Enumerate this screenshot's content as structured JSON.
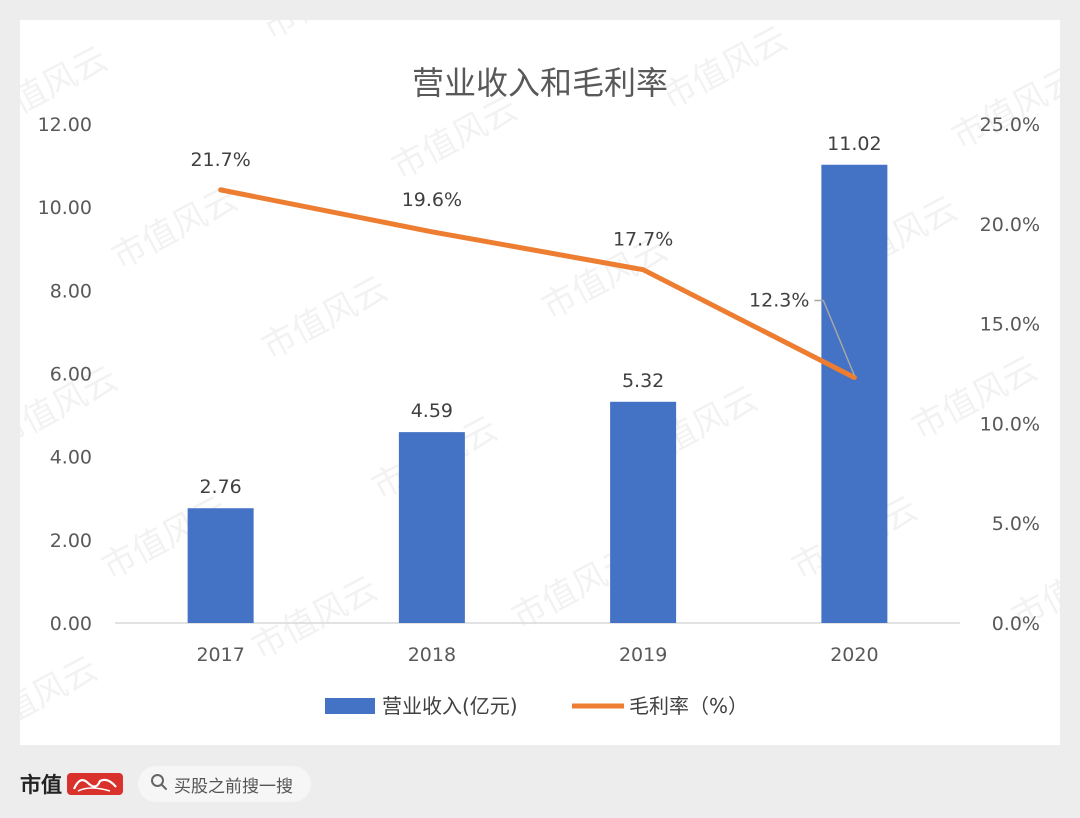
{
  "chart_data": {
    "type": "bar+line",
    "title": "营业收入和毛利率",
    "categories": [
      "2017",
      "2018",
      "2019",
      "2020"
    ],
    "series": [
      {
        "name": "营业收入(亿元)",
        "type": "bar",
        "axis": "left",
        "color": "#4472c4",
        "values": [
          2.76,
          4.59,
          5.32,
          11.02
        ],
        "labels": [
          "2.76",
          "4.59",
          "5.32",
          "11.02"
        ]
      },
      {
        "name": "毛利率（%）",
        "type": "line",
        "axis": "right",
        "color": "#ed7d31",
        "values": [
          21.7,
          19.6,
          17.7,
          12.3
        ],
        "labels": [
          "21.7%",
          "19.6%",
          "17.7%",
          "12.3%"
        ]
      }
    ],
    "y_left": {
      "ylim": [
        0,
        12
      ],
      "ticks": [
        "0.00",
        "2.00",
        "4.00",
        "6.00",
        "8.00",
        "10.00",
        "12.00"
      ]
    },
    "y_right": {
      "ylim": [
        0,
        25
      ],
      "ticks": [
        "0.0%",
        "5.0%",
        "10.0%",
        "15.0%",
        "20.0%",
        "25.0%"
      ]
    },
    "grid": false,
    "legend": "bottom"
  },
  "watermark": "市值风云",
  "footer": {
    "brand": "市值",
    "brand_logo": "风云",
    "search_icon": "search-icon",
    "search_text": "买股之前搜一搜"
  }
}
